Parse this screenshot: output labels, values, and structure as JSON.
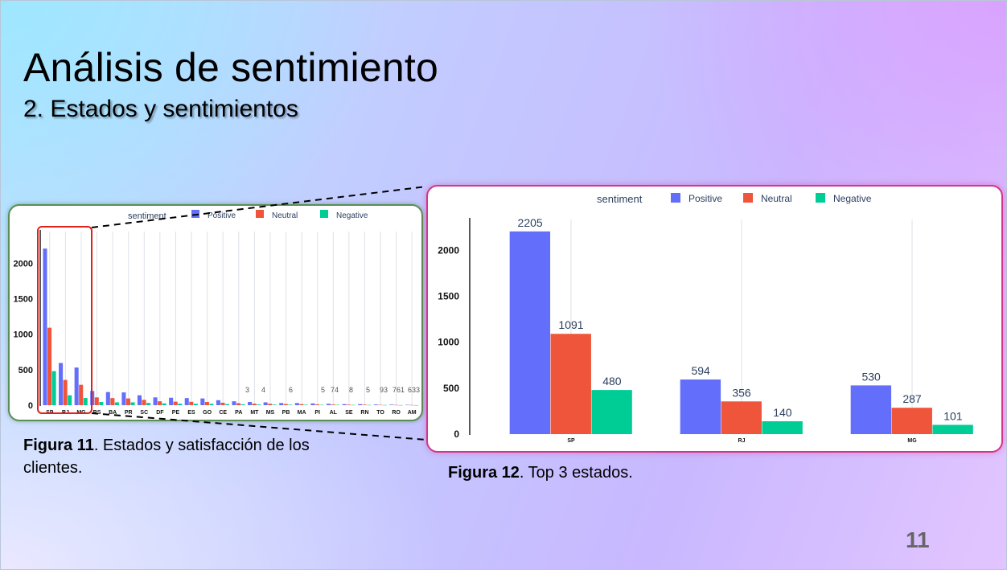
{
  "slide": {
    "title": "Análisis de sentimiento",
    "subtitle": "2. Estados y sentimientos",
    "page_number": "11"
  },
  "figure11": {
    "label": "Figura 11",
    "text": ". Estados y satisfacción de los clientes."
  },
  "figure12": {
    "label": "Figura 12",
    "text": ". Top 3 estados."
  },
  "colors": {
    "Positive": "#636efa",
    "Neutral": "#ef553b",
    "Negative": "#00cc96",
    "highlight_box": "#e0201b",
    "card1_border": "#5a8e54",
    "card2_border": "#d3348c"
  },
  "chart_data": [
    {
      "type": "bar",
      "barmode": "group",
      "legend_title": "sentiment",
      "legend_position": "top",
      "categories": [
        "SP",
        "RJ",
        "MG",
        "RS",
        "BA",
        "PR",
        "SC",
        "DF",
        "PE",
        "ES",
        "GO",
        "CE",
        "PA",
        "MT",
        "MS",
        "PB",
        "MA",
        "PI",
        "AL",
        "SE",
        "RN",
        "TO",
        "RO",
        "AM"
      ],
      "series": [
        {
          "name": "Positive",
          "values": [
            2205,
            594,
            530,
            200,
            185,
            180,
            140,
            110,
            105,
            100,
            95,
            70,
            55,
            45,
            40,
            30,
            30,
            25,
            20,
            15,
            15,
            10,
            8,
            5
          ]
        },
        {
          "name": "Neutral",
          "values": [
            1091,
            356,
            287,
            110,
            100,
            95,
            75,
            55,
            50,
            48,
            45,
            35,
            28,
            22,
            20,
            16,
            15,
            12,
            10,
            8,
            8,
            5,
            4,
            3
          ]
        },
        {
          "name": "Negative",
          "values": [
            480,
            140,
            101,
            45,
            40,
            40,
            32,
            25,
            22,
            20,
            20,
            15,
            12,
            10,
            8,
            7,
            6,
            5,
            5,
            4,
            4,
            3,
            2,
            1
          ]
        }
      ],
      "ylim": [
        0,
        2400
      ],
      "yticks": [
        0,
        500,
        1000,
        1500,
        2000
      ],
      "annotations": [
        "3",
        "4",
        "6",
        "5",
        "74",
        "8",
        "5",
        "93",
        "761",
        "633",
        "6"
      ]
    },
    {
      "type": "bar",
      "barmode": "group",
      "legend_title": "sentiment",
      "legend_position": "top",
      "categories": [
        "SP",
        "RJ",
        "MG"
      ],
      "series": [
        {
          "name": "Positive",
          "values": [
            2205,
            594,
            530
          ],
          "labels": [
            "2205",
            "594",
            "530"
          ]
        },
        {
          "name": "Neutral",
          "values": [
            1091,
            356,
            287
          ],
          "labels": [
            "1091",
            "356",
            "287"
          ]
        },
        {
          "name": "Negative",
          "values": [
            480,
            140,
            101
          ],
          "labels": [
            "480",
            "140",
            "101"
          ]
        }
      ],
      "ylim": [
        0,
        2300
      ],
      "yticks": [
        0,
        500,
        1000,
        1500,
        2000
      ]
    }
  ]
}
